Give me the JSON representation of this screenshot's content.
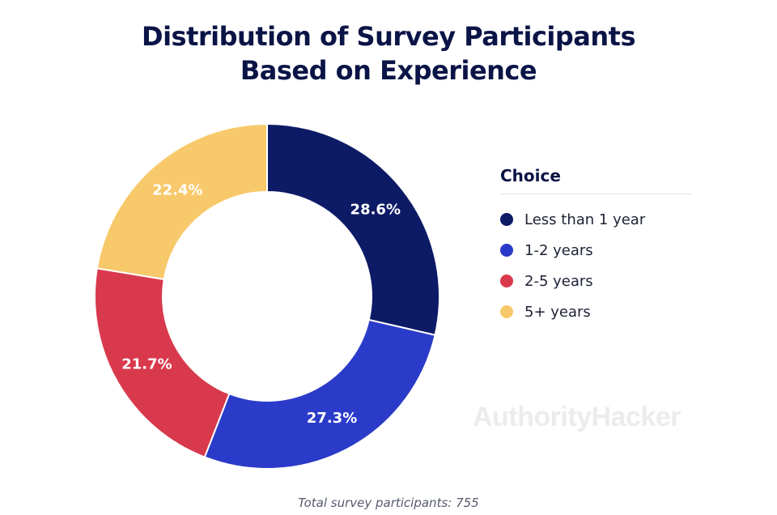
{
  "chart_data": {
    "type": "pie",
    "title_lines": [
      "Distribution of Survey Participants",
      "Based on Experience"
    ],
    "legend_title": "Choice",
    "categories": [
      "Less than 1 year",
      "1-2 years",
      "2-5 years",
      "5+ years"
    ],
    "values": [
      28.6,
      27.3,
      21.7,
      22.4
    ],
    "value_labels": [
      "28.6%",
      "27.3%",
      "21.7%",
      "22.4%"
    ],
    "colors": [
      "#0d1a66",
      "#2b3bc9",
      "#d9394c",
      "#f8c96b"
    ],
    "legend_placement": "right",
    "donut": true
  },
  "watermark": "AuthorityHacker",
  "footnote": "Total survey participants: 755"
}
